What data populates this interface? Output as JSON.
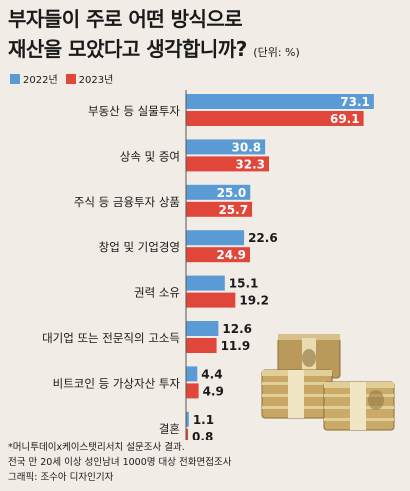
{
  "title_line1": "부자들이 주로 어떤 방식으로",
  "title_line2": "재산을 모았다고 생각합니까?",
  "unit": "(단위: %)",
  "footer": {
    "line1": "*머니투데이x케이스탯리서치 설문조사 결과.",
    "line2": "전국 만 20세 이상 성인남녀 1000명 대상 전화면접조사",
    "line3": "그래픽: 조수아 디자인기자"
  },
  "colors": {
    "2022년": "#5b9bd5",
    "2023년": "#e0463a",
    "background": "#f1ede6"
  },
  "chart_data": {
    "type": "bar",
    "orientation": "horizontal",
    "categories": [
      "부동산 등 실물투자",
      "상속 및 증여",
      "주식 등 금융투자 상품",
      "창업 및 기업경영",
      "권력 소유",
      "대기업 또는 전문직의 고소득",
      "비트코인 등 가상자산 투자",
      "결혼"
    ],
    "series": [
      {
        "name": "2022년",
        "values": [
          73.1,
          30.8,
          25.0,
          22.6,
          15.1,
          12.6,
          4.4,
          1.1
        ],
        "labels": [
          "73.1",
          "30.8",
          "25.0",
          "22.6",
          "15.1",
          "12.6",
          "4.4",
          "1.1"
        ]
      },
      {
        "name": "2023년",
        "values": [
          69.1,
          32.3,
          25.7,
          24.9,
          19.2,
          11.9,
          4.9,
          0.8
        ],
        "labels": [
          "69.1",
          "32.3",
          "25.7",
          "24.9",
          "19.2",
          "11.9",
          "4.9",
          "0.8"
        ]
      }
    ],
    "title": "부자들이 주로 어떤 방식으로 재산을 모았다고 생각합니까?",
    "xlabel": "",
    "ylabel": "",
    "grid": false,
    "legend": "top-left"
  }
}
